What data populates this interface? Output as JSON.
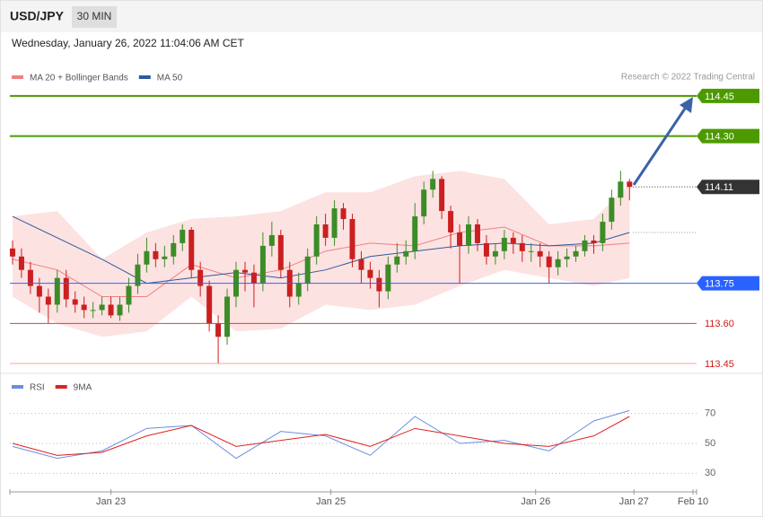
{
  "header": {
    "symbol": "USD/JPY",
    "interval": "30 MIN",
    "timestamp": "Wednesday, January 26, 2022 11:04:06 AM CET"
  },
  "chart_data": [
    {
      "type": "candlestick",
      "credit": "Research © 2022 Trading Central",
      "x": [
        0,
        1,
        2,
        3,
        4,
        5,
        6,
        7,
        8,
        9,
        10,
        11,
        12,
        13,
        14,
        15,
        16,
        17,
        18,
        19,
        20,
        21,
        22,
        23,
        24,
        25,
        26,
        27,
        28,
        29,
        30,
        31,
        32,
        33,
        34,
        35,
        36,
        37,
        38,
        39,
        40,
        41,
        42,
        43,
        44,
        45,
        46,
        47,
        48,
        49,
        50,
        51,
        52,
        53,
        54,
        55,
        56,
        57,
        58,
        59,
        60,
        61,
        62,
        63,
        64,
        65,
        66,
        67,
        68,
        69
      ],
      "open": [
        113.88,
        113.85,
        113.8,
        113.74,
        113.7,
        113.67,
        113.77,
        113.69,
        113.67,
        113.65,
        113.65,
        113.67,
        113.63,
        113.67,
        113.74,
        113.82,
        113.87,
        113.84,
        113.85,
        113.9,
        113.95,
        113.8,
        113.74,
        113.6,
        113.55,
        113.7,
        113.8,
        113.79,
        113.75,
        113.89,
        113.93,
        113.8,
        113.7,
        113.75,
        113.85,
        113.97,
        113.92,
        114.03,
        113.99,
        113.84,
        113.8,
        113.77,
        113.72,
        113.82,
        113.85,
        113.87,
        114.0,
        114.1,
        114.14,
        114.02,
        113.94,
        113.89,
        113.97,
        113.9,
        113.85,
        113.87,
        113.92,
        113.9,
        113.87,
        113.87,
        113.85,
        113.81,
        113.84,
        113.85,
        113.87,
        113.91,
        113.9,
        113.98,
        114.07,
        114.13
      ],
      "high": [
        113.91,
        113.88,
        113.83,
        113.77,
        113.73,
        113.8,
        113.8,
        113.72,
        113.7,
        113.68,
        113.7,
        113.7,
        113.7,
        113.77,
        113.86,
        113.92,
        113.9,
        113.89,
        113.93,
        113.97,
        113.96,
        113.83,
        113.76,
        113.63,
        113.73,
        113.83,
        113.83,
        113.82,
        113.94,
        113.98,
        113.95,
        113.83,
        113.79,
        113.88,
        114.0,
        114.01,
        114.06,
        114.05,
        114.01,
        113.87,
        113.83,
        113.8,
        113.85,
        113.9,
        113.91,
        114.05,
        114.13,
        114.17,
        114.15,
        114.04,
        113.97,
        114.0,
        113.99,
        113.93,
        113.9,
        113.95,
        113.94,
        113.93,
        113.9,
        113.9,
        113.87,
        113.87,
        113.88,
        113.89,
        113.93,
        113.93,
        114.01,
        114.1,
        114.17,
        114.14
      ],
      "low": [
        113.82,
        113.77,
        113.71,
        113.64,
        113.6,
        113.64,
        113.66,
        113.64,
        113.62,
        113.62,
        113.63,
        113.62,
        113.61,
        113.64,
        113.71,
        113.79,
        113.81,
        113.81,
        113.82,
        113.87,
        113.77,
        113.7,
        113.57,
        113.45,
        113.52,
        113.66,
        113.72,
        113.66,
        113.72,
        113.85,
        113.77,
        113.66,
        113.67,
        113.72,
        113.82,
        113.89,
        113.89,
        113.95,
        113.81,
        113.75,
        113.73,
        113.66,
        113.69,
        113.79,
        113.82,
        113.84,
        113.97,
        114.07,
        113.99,
        113.88,
        113.75,
        113.86,
        113.87,
        113.82,
        113.82,
        113.84,
        113.86,
        113.83,
        113.83,
        113.81,
        113.75,
        113.78,
        113.81,
        113.83,
        113.85,
        113.86,
        113.87,
        113.95,
        114.04,
        114.06
      ],
      "close": [
        113.85,
        113.8,
        113.74,
        113.7,
        113.67,
        113.77,
        113.69,
        113.67,
        113.65,
        113.65,
        113.67,
        113.63,
        113.67,
        113.74,
        113.82,
        113.87,
        113.84,
        113.85,
        113.9,
        113.95,
        113.8,
        113.74,
        113.6,
        113.55,
        113.7,
        113.8,
        113.79,
        113.75,
        113.89,
        113.93,
        113.8,
        113.7,
        113.75,
        113.85,
        113.97,
        113.92,
        114.03,
        113.99,
        113.84,
        113.8,
        113.77,
        113.72,
        113.82,
        113.85,
        113.87,
        114.0,
        114.1,
        114.14,
        114.02,
        113.94,
        113.89,
        113.97,
        113.9,
        113.85,
        113.87,
        113.92,
        113.9,
        113.87,
        113.87,
        113.85,
        113.81,
        113.84,
        113.85,
        113.87,
        113.91,
        113.9,
        113.98,
        114.07,
        114.13,
        114.11
      ],
      "colors": {
        "up": "#3c8c28",
        "down": "#cc1f1f"
      },
      "overlays": [
        {
          "name": "MA 20 + Bollinger Bands",
          "color": "#f08080",
          "band_color": "#fde2e2",
          "x": [
            0,
            5,
            10,
            15,
            20,
            25,
            30,
            35,
            40,
            45,
            50,
            55,
            60,
            65,
            69
          ],
          "values": [
            113.84,
            113.8,
            113.7,
            113.7,
            113.82,
            113.77,
            113.8,
            113.87,
            113.9,
            113.89,
            113.94,
            113.96,
            113.89,
            113.89,
            113.9
          ],
          "upper": [
            114.0,
            114.02,
            113.84,
            113.94,
            113.99,
            114.0,
            114.02,
            114.09,
            114.09,
            114.15,
            114.17,
            114.14,
            113.97,
            113.99,
            114.12
          ],
          "lower": [
            113.7,
            113.6,
            113.55,
            113.57,
            113.7,
            113.57,
            113.58,
            113.67,
            113.65,
            113.67,
            113.74,
            113.8,
            113.77,
            113.74,
            113.77
          ]
        },
        {
          "name": "MA 50",
          "color": "#2e5a9c",
          "x": [
            0,
            5,
            10,
            15,
            20,
            25,
            30,
            35,
            40,
            45,
            50,
            55,
            60,
            65,
            69
          ],
          "values": [
            114.0,
            113.92,
            113.84,
            113.75,
            113.77,
            113.79,
            113.77,
            113.8,
            113.85,
            113.87,
            113.89,
            113.9,
            113.89,
            113.9,
            113.94
          ]
        }
      ],
      "levels": [
        {
          "value": 114.45,
          "label": "114.45",
          "color": "#4c9a00",
          "style": "tag",
          "line": "solid"
        },
        {
          "value": 114.3,
          "label": "114.30",
          "color": "#4c9a00",
          "style": "tag",
          "line": "solid"
        },
        {
          "value": 114.11,
          "label": "114.11",
          "color": "#333333",
          "style": "tag",
          "line": "dotted"
        },
        {
          "value": 113.75,
          "label": "113.75",
          "color": "#2962ff",
          "style": "tag",
          "line": "solid"
        },
        {
          "value": 113.6,
          "label": "113.60",
          "color": "#e03c3c",
          "style": "plain",
          "line": "solid"
        },
        {
          "value": 113.45,
          "label": "113.45",
          "color": "#f4a6a6",
          "style": "plain",
          "line": "solid"
        }
      ],
      "xlim": [
        -0.3,
        76.5
      ],
      "ylim": [
        113.43,
        114.49
      ]
    },
    {
      "type": "line",
      "x": [
        0,
        5,
        10,
        15,
        20,
        25,
        30,
        35,
        40,
        45,
        50,
        55,
        60,
        65,
        69
      ],
      "series": [
        {
          "name": "RSI",
          "color": "#6a8ee0",
          "values": [
            48,
            40,
            45,
            60,
            62,
            40,
            58,
            55,
            42,
            68,
            50,
            52,
            45,
            65,
            72
          ]
        },
        {
          "name": "9MA",
          "color": "#e02020",
          "values": [
            50,
            42,
            44,
            55,
            62,
            48,
            52,
            56,
            48,
            60,
            55,
            50,
            48,
            55,
            68
          ]
        }
      ],
      "xlim": [
        -0.3,
        76.5
      ],
      "xticks": [
        {
          "value": 11,
          "label": "Jan 23"
        },
        {
          "value": 35.6,
          "label": "Jan 25"
        },
        {
          "value": 58.5,
          "label": "Jan 26"
        },
        {
          "value": 69.5,
          "label": "Jan 27"
        },
        {
          "value": 76.1,
          "label": "Feb 10"
        }
      ],
      "ylim": [
        20,
        80
      ],
      "yticks": [
        30,
        50,
        70
      ],
      "grid": true
    }
  ]
}
